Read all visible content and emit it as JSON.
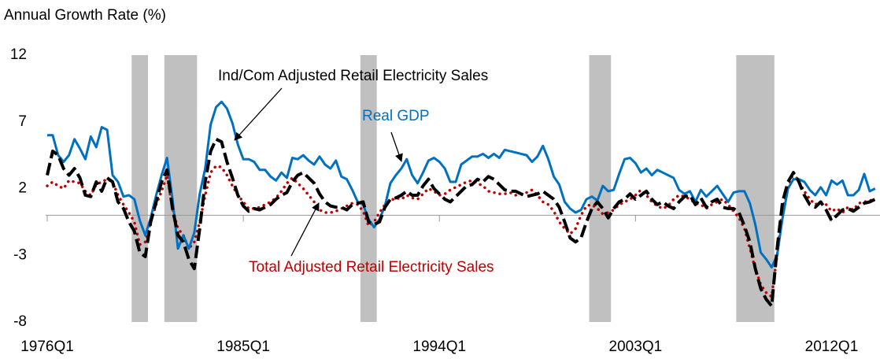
{
  "chart_data": {
    "type": "line",
    "y_label": "Annual Growth Rate (%)",
    "categories": [
      "1976Q1",
      null,
      null,
      null,
      null,
      null,
      null,
      null,
      null,
      null,
      null,
      null,
      null,
      null,
      null,
      null,
      null,
      null,
      null,
      null,
      null,
      null,
      null,
      null,
      null,
      null,
      null,
      null,
      null,
      null,
      null,
      null,
      null,
      null,
      null,
      null,
      "1985Q1",
      null,
      null,
      null,
      null,
      null,
      null,
      null,
      null,
      null,
      null,
      null,
      null,
      null,
      null,
      null,
      null,
      null,
      null,
      null,
      null,
      null,
      null,
      null,
      null,
      null,
      null,
      null,
      null,
      null,
      null,
      null,
      null,
      null,
      null,
      null,
      "1994Q1",
      null,
      null,
      null,
      null,
      null,
      null,
      null,
      null,
      null,
      null,
      null,
      null,
      null,
      null,
      null,
      null,
      null,
      null,
      null,
      null,
      null,
      null,
      null,
      null,
      null,
      null,
      null,
      null,
      null,
      null,
      null,
      null,
      null,
      null,
      null,
      "2003Q1",
      null,
      null,
      null,
      null,
      null,
      null,
      null,
      null,
      null,
      null,
      null,
      null,
      null,
      null,
      null,
      null,
      null,
      null,
      null,
      null,
      null,
      null,
      null,
      null,
      null,
      null,
      null,
      null,
      null,
      null,
      null,
      null,
      null,
      null,
      null,
      "2012Q1",
      null,
      null,
      null,
      null,
      null,
      null,
      null,
      null
    ],
    "series": [
      {
        "name": "Ind/Com Adjusted Retail Electricity Sales",
        "color": "#000000",
        "style": "dashed",
        "values": [
          3.0,
          4.8,
          4.5,
          3.5,
          3.0,
          3.5,
          2.8,
          1.5,
          1.4,
          2.5,
          1.8,
          2.8,
          2.5,
          1.0,
          0.5,
          -0.5,
          -1.2,
          -2.8,
          -3.1,
          -0.5,
          1.0,
          2.5,
          3.4,
          0.5,
          -1.5,
          -2.0,
          -3.3,
          -4.0,
          -1.0,
          2.5,
          4.8,
          5.7,
          5.5,
          4.0,
          2.8,
          1.5,
          0.7,
          0.3,
          0.5,
          0.4,
          0.6,
          0.8,
          1.2,
          1.5,
          1.7,
          2.5,
          3.0,
          3.2,
          2.8,
          2.4,
          1.6,
          1.0,
          0.7,
          0.6,
          0.6,
          0.4,
          0.8,
          0.9,
          1.0,
          -0.5,
          -0.7,
          -0.5,
          0.6,
          1.2,
          1.3,
          1.5,
          1.8,
          1.5,
          1.5,
          2.2,
          2.7,
          2.0,
          1.6,
          1.2,
          1.0,
          1.4,
          1.8,
          2.2,
          2.3,
          2.7,
          2.5,
          2.9,
          2.7,
          2.3,
          1.9,
          1.8,
          1.8,
          1.6,
          1.4,
          1.5,
          1.6,
          1.8,
          1.5,
          1.2,
          0.6,
          -0.5,
          -1.7,
          -2.0,
          -1.7,
          -0.5,
          0.5,
          1.0,
          0.5,
          -0.2,
          0.5,
          1.0,
          1.2,
          1.6,
          1.2,
          1.5,
          1.8,
          1.2,
          0.8,
          1.0,
          0.7,
          0.5,
          1.0,
          1.4,
          1.5,
          0.8,
          1.3,
          0.6,
          1.0,
          1.2,
          0.6,
          0.5,
          0.5,
          0.2,
          -0.8,
          -2.0,
          -4.0,
          -5.5,
          -6.3,
          -6.8,
          -2.5,
          1.0,
          2.5,
          3.2,
          2.5,
          1.5,
          0.8,
          0.6,
          1.0,
          0.4,
          -0.4,
          0.0,
          0.4,
          0.5,
          0.3,
          0.6,
          0.9,
          1.0,
          1.2
        ]
      },
      {
        "name": "Real GDP",
        "color": "#0070c0",
        "style": "solid",
        "values": [
          6.0,
          6.0,
          4.5,
          4.0,
          4.5,
          5.7,
          5.0,
          4.2,
          5.9,
          5.1,
          6.6,
          6.4,
          3.0,
          2.5,
          1.4,
          1.5,
          1.2,
          -0.4,
          -1.5,
          -0.2,
          1.5,
          3.0,
          4.3,
          1.2,
          -2.5,
          -1.5,
          -2.5,
          -1.3,
          1.6,
          3.5,
          6.8,
          8.1,
          8.5,
          8.0,
          6.9,
          5.3,
          4.2,
          4.2,
          4.0,
          3.4,
          3.4,
          2.9,
          2.6,
          3.2,
          2.8,
          4.3,
          4.2,
          4.5,
          4.1,
          3.8,
          4.4,
          3.8,
          3.5,
          4.1,
          2.9,
          2.7,
          1.9,
          1.0,
          0.8,
          -0.3,
          -0.9,
          -0.3,
          0.7,
          2.4,
          3.0,
          3.5,
          4.2,
          3.0,
          2.4,
          3.2,
          4.1,
          4.3,
          4.0,
          3.5,
          2.5,
          2.5,
          3.8,
          4.1,
          4.4,
          4.4,
          4.6,
          4.3,
          4.6,
          4.3,
          4.9,
          4.8,
          4.7,
          4.6,
          4.5,
          4.0,
          4.4,
          5.2,
          4.2,
          2.9,
          2.3,
          1.0,
          0.5,
          0.2,
          0.4,
          1.2,
          1.4,
          1.1,
          2.2,
          1.8,
          1.9,
          3.1,
          4.2,
          4.3,
          3.9,
          3.2,
          3.5,
          3.0,
          3.4,
          3.2,
          3.0,
          2.8,
          1.9,
          1.6,
          1.8,
          1.0,
          1.9,
          1.4,
          1.8,
          2.2,
          1.6,
          1.0,
          1.7,
          1.8,
          1.8,
          0.9,
          -0.7,
          -2.8,
          -3.3,
          -3.9,
          -3.0,
          -0.2,
          2.0,
          2.7,
          2.7,
          2.5,
          1.9,
          1.5,
          2.1,
          1.5,
          2.6,
          2.3,
          2.6,
          1.5,
          1.5,
          1.9,
          3.1,
          1.8,
          2.0
        ]
      },
      {
        "name": "Total Adjusted Retail Electricity Sales",
        "color": "#c00000",
        "style": "dotted",
        "values": [
          2.2,
          2.5,
          2.2,
          2.0,
          2.6,
          2.5,
          2.4,
          1.8,
          1.5,
          2.3,
          2.5,
          2.7,
          2.5,
          1.5,
          0.8,
          0.2,
          -0.5,
          -2.2,
          -2.0,
          -0.5,
          0.8,
          1.8,
          3.0,
          0.5,
          -1.0,
          -1.5,
          -2.5,
          -2.0,
          -0.5,
          1.5,
          3.2,
          3.7,
          3.6,
          3.0,
          2.2,
          1.5,
          1.0,
          0.5,
          0.5,
          0.6,
          0.8,
          1.0,
          1.3,
          1.8,
          2.4,
          2.8,
          2.4,
          2.0,
          1.5,
          1.0,
          0.4,
          0.2,
          0.2,
          0.3,
          0.5,
          0.7,
          0.9,
          0.8,
          0.3,
          -0.8,
          -0.5,
          0.2,
          0.8,
          1.1,
          1.3,
          1.2,
          1.5,
          1.3,
          1.2,
          1.6,
          2.0,
          1.8,
          1.5,
          1.6,
          1.9,
          2.1,
          2.3,
          2.5,
          2.6,
          2.4,
          2.2,
          1.8,
          1.7,
          1.6,
          1.6,
          1.7,
          1.5,
          1.6,
          1.7,
          1.9,
          1.5,
          1.0,
          0.8,
          0.3,
          -0.5,
          -1.0,
          -1.4,
          -1.0,
          0.0,
          0.7,
          0.8,
          0.5,
          0.1,
          0.2,
          0.4,
          0.8,
          1.0,
          1.2,
          1.5,
          1.9,
          1.5,
          1.0,
          0.7,
          0.5,
          0.7,
          1.2,
          1.5,
          1.4,
          1.2,
          0.9,
          0.8,
          0.5,
          0.8,
          1.0,
          1.2,
          0.8,
          0.3,
          -0.2,
          -1.0,
          -2.5,
          -4.0,
          -5.2,
          -5.8,
          -6.1,
          -3.0,
          0.5,
          2.0,
          3.2,
          2.5,
          1.8,
          1.2,
          0.8,
          1.0,
          0.8,
          0.3,
          0.5,
          0.2,
          0.6,
          0.4,
          0.9,
          1.0,
          1.1,
          1.2
        ]
      }
    ],
    "recessions": [
      {
        "start": "1980Q1",
        "end": "1980Q3"
      },
      {
        "start": "1981Q3",
        "end": "1982Q4"
      },
      {
        "start": "1990Q3",
        "end": "1991Q1"
      },
      {
        "start": "2001Q1",
        "end": "2001Q4"
      },
      {
        "start": "2007Q4",
        "end": "2009Q2"
      }
    ],
    "recession_color": "#c0c0c0",
    "ylim": [
      -8,
      12
    ],
    "yticks": [
      -8,
      -3,
      2,
      7,
      12
    ],
    "grid": false
  }
}
